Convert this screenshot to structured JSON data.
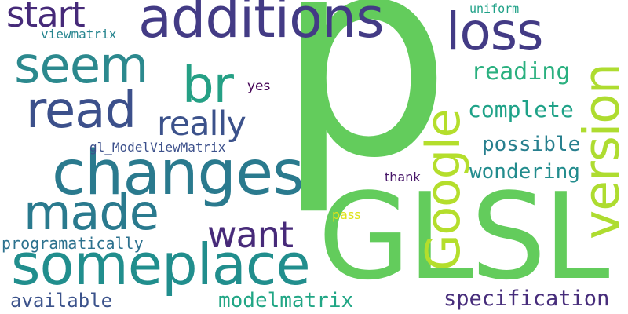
{
  "words": {
    "p": "p",
    "glsl": "GLSL",
    "additions": "additions",
    "changes": "changes",
    "someplace": "someplace",
    "made": "made",
    "read": "read",
    "seem": "seem",
    "loss": "loss",
    "version": "version",
    "google": "Google",
    "br": "br",
    "start": "start",
    "want": "want",
    "really": "really",
    "reading": "reading",
    "complete": "complete",
    "possible": "possible",
    "wondering": "wondering",
    "specification": "specification",
    "modelmatrix": "modelmatrix",
    "available": "available",
    "programatically": "programatically",
    "gl_modelviewmatrix": "gl_ModelViewMatrix",
    "viewmatrix": "viewmatrix",
    "uniform": "uniform",
    "yes": "yes",
    "thank": "thank",
    "pass": "pass"
  },
  "colors": {
    "p": "#63cc5c",
    "glsl": "#63cc5c",
    "additions": "#433b85",
    "changes": "#2a7a8e",
    "someplace": "#218e8d",
    "made": "#2a7a8e",
    "read": "#3c508b",
    "seem": "#2c898e",
    "loss": "#433b85",
    "version": "#aedc30",
    "google": "#b4de2c",
    "br": "#25a085",
    "start": "#462a79",
    "want": "#472a79",
    "really": "#3c528b",
    "reading": "#2ab07f",
    "complete": "#1fa288",
    "possible": "#277f8e",
    "wondering": "#228c8d",
    "specification": "#472d7b",
    "modelmatrix": "#21a685",
    "available": "#3b528b",
    "programatically": "#2c718e",
    "gl_modelviewmatrix": "#3c508b",
    "viewmatrix": "#25848e",
    "uniform": "#1fa187",
    "yes": "#440154",
    "thank": "#481769",
    "pass": "#dfe318"
  }
}
